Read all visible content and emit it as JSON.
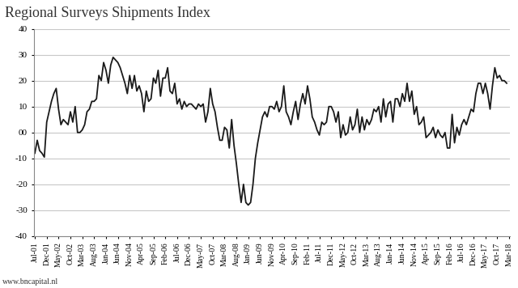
{
  "chart_data": {
    "type": "line",
    "title": "Regional Surveys Shipments Index",
    "annotations": [
      "www.bncapital.nl"
    ],
    "categories": [
      "Jul-01",
      null,
      null,
      null,
      null,
      "Dec-01",
      null,
      null,
      null,
      null,
      "May-02",
      null,
      null,
      null,
      null,
      "Oct-02",
      null,
      null,
      null,
      null,
      "Mar-03",
      null,
      null,
      null,
      null,
      "Aug-03",
      null,
      null,
      null,
      null,
      "Jan-04",
      null,
      null,
      null,
      null,
      "Jun-04",
      null,
      null,
      null,
      null,
      "Nov-04",
      null,
      null,
      null,
      null,
      "Apr-05",
      null,
      null,
      null,
      null,
      "Sep-05",
      null,
      null,
      null,
      null,
      "Feb-06",
      null,
      null,
      null,
      null,
      "Jul-06",
      null,
      null,
      null,
      null,
      "Dec-06",
      null,
      null,
      null,
      null,
      "May-07",
      null,
      null,
      null,
      null,
      "Oct-07",
      null,
      null,
      null,
      null,
      "Mar-08",
      null,
      null,
      null,
      null,
      "Aug-08",
      null,
      null,
      null,
      null,
      "Jan-09",
      null,
      null,
      null,
      null,
      "Jun-09",
      null,
      null,
      null,
      null,
      "Nov-09",
      null,
      null,
      null,
      null,
      "Apr-10",
      null,
      null,
      null,
      null,
      "Sep-10",
      null,
      null,
      null,
      null,
      "Feb-11",
      null,
      null,
      null,
      null,
      "Jul-11",
      null,
      null,
      null,
      null,
      "Dec-11",
      null,
      null,
      null,
      null,
      "May-12",
      null,
      null,
      null,
      null,
      "Oct-12",
      null,
      null,
      null,
      null,
      "Mar-13",
      null,
      null,
      null,
      null,
      "Aug-13",
      null,
      null,
      null,
      null,
      "Jan-14",
      null,
      null,
      null,
      null,
      "Jun-14",
      null,
      null,
      null,
      null,
      "Nov-14",
      null,
      null,
      null,
      null,
      "Apr-15",
      null,
      null,
      null,
      null,
      "Sep-15",
      null,
      null,
      null,
      null,
      "Feb-16",
      null,
      null,
      null,
      null,
      "Jul-16",
      null,
      null,
      null,
      null,
      "Dec-16",
      null,
      null,
      null,
      null,
      "May-17",
      null,
      null,
      null,
      null,
      "Oct-17",
      null,
      null,
      null,
      null,
      "Mar-18"
    ],
    "values": [
      -8,
      -3,
      -7,
      -8,
      -9.5,
      4,
      8,
      12,
      15,
      17,
      9,
      3,
      5,
      4,
      3,
      8,
      4,
      10,
      0,
      0,
      1,
      3,
      8,
      9,
      12,
      12,
      13,
      22,
      20,
      27,
      24,
      19,
      26,
      29,
      28,
      27,
      25,
      22,
      19,
      15,
      22,
      17,
      22,
      16,
      18,
      15,
      8,
      16,
      12,
      13,
      21,
      19,
      24,
      14,
      21,
      21,
      25,
      16,
      15,
      19,
      11,
      13,
      9,
      12,
      10,
      11,
      11,
      10,
      9,
      11,
      10,
      11,
      4,
      8,
      17,
      11,
      8,
      2,
      -3,
      -3,
      2,
      1,
      -6,
      5,
      -5,
      -12,
      -20,
      -27,
      -20,
      -27,
      -28,
      -27,
      -20,
      -10,
      -4,
      1,
      6,
      8,
      6,
      10,
      10,
      9,
      12,
      8,
      10,
      18,
      8,
      6,
      3,
      8,
      12,
      5,
      11,
      15,
      11,
      18,
      13,
      6,
      4,
      1,
      -1,
      4,
      3,
      4,
      10,
      10,
      8,
      4,
      8,
      -2,
      3,
      -1,
      0,
      6,
      1,
      3,
      9,
      0,
      6,
      1,
      5,
      3,
      5,
      9,
      8,
      10,
      4,
      13,
      6,
      11,
      12,
      4,
      13,
      13,
      10,
      15,
      12,
      19,
      12,
      16,
      7,
      10,
      3,
      4,
      6,
      -2,
      -1,
      0,
      2,
      -2,
      1,
      -1,
      -2,
      0,
      -6,
      -6,
      7,
      -4,
      2,
      -1,
      3,
      5,
      3,
      6,
      9,
      8,
      15,
      19,
      19,
      15,
      19,
      15,
      9,
      18,
      25,
      21,
      22,
      20,
      20,
      19,
      null
    ],
    "color": "#1a1a1a",
    "ylim": [
      -40,
      40
    ],
    "yticks": [
      -40,
      -30,
      -20,
      -10,
      {
        "value": 0,
        "label": "00"
      },
      10,
      20,
      30,
      40
    ],
    "grid": true
  }
}
